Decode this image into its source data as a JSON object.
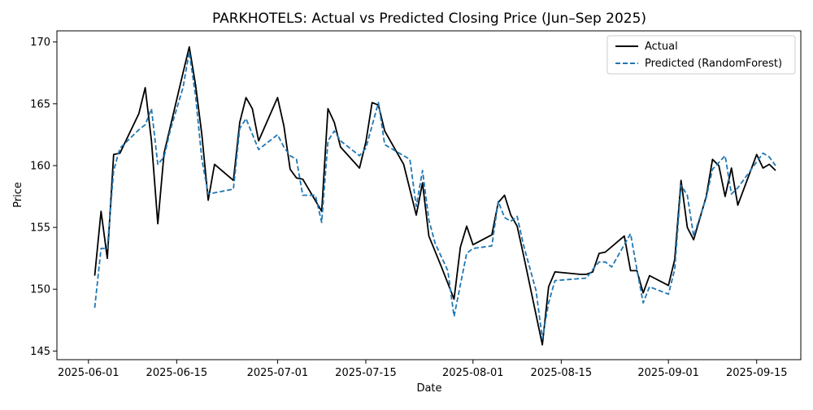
{
  "chart_data": {
    "type": "line",
    "title": "PARKHOTELS: Actual vs Predicted Closing Price (Jun–Sep 2025)",
    "xlabel": "Date",
    "ylabel": "Price",
    "xlim": [
      "2025-05-27",
      "2025-09-22"
    ],
    "ylim": [
      144.3,
      170.9
    ],
    "x_ticks": [
      "2025-06-01",
      "2025-06-15",
      "2025-07-01",
      "2025-07-15",
      "2025-08-01",
      "2025-08-15",
      "2025-09-01",
      "2025-09-15"
    ],
    "y_ticks": [
      145,
      150,
      155,
      160,
      165,
      170
    ],
    "grid": false,
    "legend_position": "top-right",
    "series": [
      {
        "name": "Actual",
        "color": "#000000",
        "dash": "solid",
        "values": [
          [
            "2025-06-02",
            151.1
          ],
          [
            "2025-06-03",
            156.3
          ],
          [
            "2025-06-04",
            152.5
          ],
          [
            "2025-06-05",
            160.9
          ],
          [
            "2025-06-06",
            161.0
          ],
          [
            "2025-06-09",
            164.2
          ],
          [
            "2025-06-10",
            166.3
          ],
          [
            "2025-06-11",
            162.0
          ],
          [
            "2025-06-12",
            155.3
          ],
          [
            "2025-06-13",
            161.0
          ],
          [
            "2025-06-16",
            167.5
          ],
          [
            "2025-06-17",
            169.6
          ],
          [
            "2025-06-18",
            166.5
          ],
          [
            "2025-06-19",
            162.5
          ],
          [
            "2025-06-20",
            157.2
          ],
          [
            "2025-06-21",
            160.1
          ],
          [
            "2025-06-24",
            158.8
          ],
          [
            "2025-06-25",
            163.5
          ],
          [
            "2025-06-26",
            165.5
          ],
          [
            "2025-06-27",
            164.6
          ],
          [
            "2025-06-28",
            162.0
          ],
          [
            "2025-07-01",
            165.5
          ],
          [
            "2025-07-02",
            163.2
          ],
          [
            "2025-07-03",
            159.7
          ],
          [
            "2025-07-04",
            159.0
          ],
          [
            "2025-07-05",
            158.9
          ],
          [
            "2025-07-08",
            156.3
          ],
          [
            "2025-07-09",
            164.6
          ],
          [
            "2025-07-10",
            163.5
          ],
          [
            "2025-07-11",
            161.5
          ],
          [
            "2025-07-14",
            159.8
          ],
          [
            "2025-07-15",
            161.9
          ],
          [
            "2025-07-16",
            165.1
          ],
          [
            "2025-07-17",
            164.9
          ],
          [
            "2025-07-18",
            162.8
          ],
          [
            "2025-07-21",
            160.1
          ],
          [
            "2025-07-23",
            156.0
          ],
          [
            "2025-07-24",
            158.6
          ],
          [
            "2025-07-25",
            154.3
          ],
          [
            "2025-07-27",
            151.8
          ],
          [
            "2025-07-29",
            149.2
          ],
          [
            "2025-07-30",
            153.4
          ],
          [
            "2025-07-31",
            155.1
          ],
          [
            "2025-08-01",
            153.6
          ],
          [
            "2025-08-04",
            154.4
          ],
          [
            "2025-08-05",
            157.0
          ],
          [
            "2025-08-06",
            157.6
          ],
          [
            "2025-08-07",
            156.0
          ],
          [
            "2025-08-08",
            155.1
          ],
          [
            "2025-08-09",
            152.8
          ],
          [
            "2025-08-12",
            145.5
          ],
          [
            "2025-08-13",
            150.2
          ],
          [
            "2025-08-14",
            151.4
          ],
          [
            "2025-08-18",
            151.2
          ],
          [
            "2025-08-19",
            151.2
          ],
          [
            "2025-08-20",
            151.4
          ],
          [
            "2025-08-21",
            152.9
          ],
          [
            "2025-08-22",
            153.0
          ],
          [
            "2025-08-25",
            154.3
          ],
          [
            "2025-08-26",
            151.5
          ],
          [
            "2025-08-27",
            151.5
          ],
          [
            "2025-08-28",
            149.7
          ],
          [
            "2025-08-29",
            151.1
          ],
          [
            "2025-09-01",
            150.3
          ],
          [
            "2025-09-02",
            152.4
          ],
          [
            "2025-09-03",
            158.8
          ],
          [
            "2025-09-04",
            155.0
          ],
          [
            "2025-09-05",
            154.0
          ],
          [
            "2025-09-07",
            157.5
          ],
          [
            "2025-09-08",
            160.5
          ],
          [
            "2025-09-09",
            160.0
          ],
          [
            "2025-09-10",
            157.5
          ],
          [
            "2025-09-11",
            159.8
          ],
          [
            "2025-09-12",
            156.8
          ],
          [
            "2025-09-15",
            160.9
          ],
          [
            "2025-09-16",
            159.8
          ],
          [
            "2025-09-17",
            160.1
          ],
          [
            "2025-09-18",
            159.6
          ]
        ]
      },
      {
        "name": "Predicted (RandomForest)",
        "color": "#1f77b4",
        "dash": "dashed",
        "values": [
          [
            "2025-06-02",
            148.5
          ],
          [
            "2025-06-03",
            153.3
          ],
          [
            "2025-06-04",
            153.3
          ],
          [
            "2025-06-05",
            159.6
          ],
          [
            "2025-06-06",
            161.4
          ],
          [
            "2025-06-09",
            162.9
          ],
          [
            "2025-06-10",
            163.3
          ],
          [
            "2025-06-11",
            164.6
          ],
          [
            "2025-06-12",
            160.1
          ],
          [
            "2025-06-13",
            160.7
          ],
          [
            "2025-06-14",
            162.9
          ],
          [
            "2025-06-16",
            166.3
          ],
          [
            "2025-06-17",
            169.2
          ],
          [
            "2025-06-18",
            165.6
          ],
          [
            "2025-06-19",
            160.5
          ],
          [
            "2025-06-20",
            157.7
          ],
          [
            "2025-06-24",
            158.1
          ],
          [
            "2025-06-25",
            163.0
          ],
          [
            "2025-06-26",
            163.8
          ],
          [
            "2025-06-28",
            161.3
          ],
          [
            "2025-07-01",
            162.5
          ],
          [
            "2025-07-02",
            161.5
          ],
          [
            "2025-07-03",
            160.8
          ],
          [
            "2025-07-04",
            160.5
          ],
          [
            "2025-07-05",
            157.6
          ],
          [
            "2025-07-07",
            157.6
          ],
          [
            "2025-07-08",
            155.4
          ],
          [
            "2025-07-09",
            162.0
          ],
          [
            "2025-07-10",
            162.8
          ],
          [
            "2025-07-11",
            162.0
          ],
          [
            "2025-07-14",
            160.8
          ],
          [
            "2025-07-15",
            161.4
          ],
          [
            "2025-07-17",
            165.1
          ],
          [
            "2025-07-18",
            161.7
          ],
          [
            "2025-07-22",
            160.5
          ],
          [
            "2025-07-23",
            156.7
          ],
          [
            "2025-07-24",
            159.6
          ],
          [
            "2025-07-25",
            155.6
          ],
          [
            "2025-07-26",
            153.7
          ],
          [
            "2025-07-28",
            151.5
          ],
          [
            "2025-07-29",
            147.8
          ],
          [
            "2025-07-31",
            152.9
          ],
          [
            "2025-08-01",
            153.3
          ],
          [
            "2025-08-04",
            153.5
          ],
          [
            "2025-08-05",
            157.1
          ],
          [
            "2025-08-06",
            155.8
          ],
          [
            "2025-08-07",
            155.5
          ],
          [
            "2025-08-08",
            155.9
          ],
          [
            "2025-08-09",
            153.6
          ],
          [
            "2025-08-11",
            149.9
          ],
          [
            "2025-08-12",
            146.0
          ],
          [
            "2025-08-13",
            148.9
          ],
          [
            "2025-08-14",
            150.7
          ],
          [
            "2025-08-19",
            150.9
          ],
          [
            "2025-08-20",
            151.6
          ],
          [
            "2025-08-21",
            152.2
          ],
          [
            "2025-08-22",
            152.2
          ],
          [
            "2025-08-23",
            151.8
          ],
          [
            "2025-08-26",
            154.5
          ],
          [
            "2025-08-27",
            151.6
          ],
          [
            "2025-08-28",
            148.9
          ],
          [
            "2025-08-29",
            150.2
          ],
          [
            "2025-09-01",
            149.6
          ],
          [
            "2025-09-02",
            151.6
          ],
          [
            "2025-09-03",
            158.4
          ],
          [
            "2025-09-04",
            157.6
          ],
          [
            "2025-09-05",
            154.3
          ],
          [
            "2025-09-07",
            157.4
          ],
          [
            "2025-09-08",
            159.7
          ],
          [
            "2025-09-10",
            160.8
          ],
          [
            "2025-09-11",
            157.7
          ],
          [
            "2025-09-12",
            158.2
          ],
          [
            "2025-09-15",
            160.3
          ],
          [
            "2025-09-16",
            161.0
          ],
          [
            "2025-09-17",
            160.7
          ],
          [
            "2025-09-18",
            160.0
          ]
        ]
      }
    ]
  }
}
